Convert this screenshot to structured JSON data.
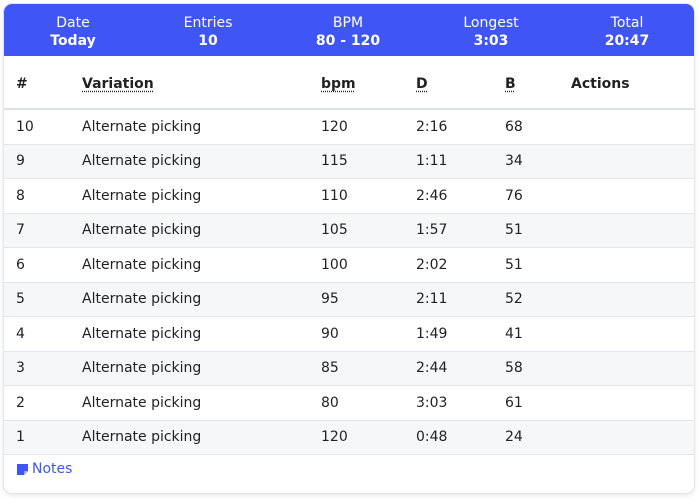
{
  "summary": [
    {
      "label": "Date",
      "value": "Today"
    },
    {
      "label": "Entries",
      "value": 10
    },
    {
      "label": "BPM",
      "value": "80 - 120"
    },
    {
      "label": "Longest",
      "value": "3:03"
    },
    {
      "label": "Total",
      "value": "20:47"
    }
  ],
  "table": {
    "columns": [
      "#",
      "Variation",
      "bpm",
      "D",
      "B",
      "Actions"
    ],
    "rows": [
      [
        10,
        "Alternate picking",
        120,
        "2:16",
        68
      ],
      [
        9,
        "Alternate picking",
        115,
        "1:11",
        34
      ],
      [
        8,
        "Alternate picking",
        110,
        "2:46",
        76
      ],
      [
        7,
        "Alternate picking",
        105,
        "1:57",
        51
      ],
      [
        6,
        "Alternate picking",
        100,
        "2:02",
        51
      ],
      [
        5,
        "Alternate picking",
        95,
        "2:11",
        52
      ],
      [
        4,
        "Alternate picking",
        90,
        "1:49",
        41
      ],
      [
        3,
        "Alternate picking",
        85,
        "2:44",
        58
      ],
      [
        2,
        "Alternate picking",
        80,
        "3:03",
        61
      ],
      [
        1,
        "Alternate picking",
        120,
        "0:48",
        24
      ]
    ]
  },
  "notes": "Notes"
}
